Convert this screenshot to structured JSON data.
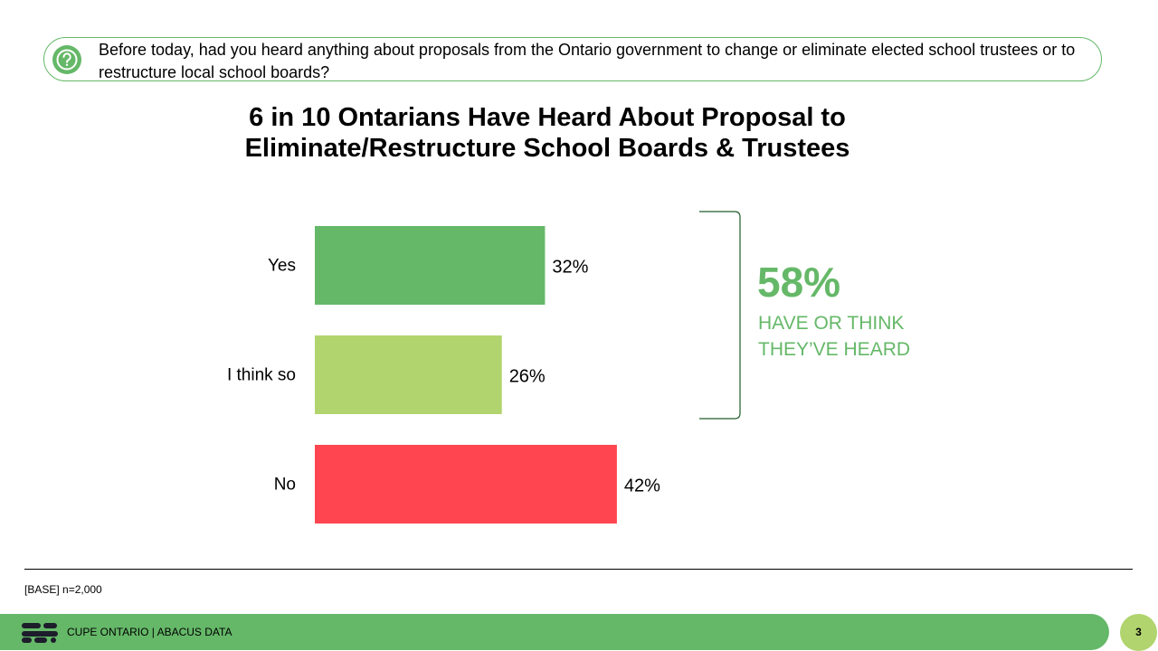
{
  "question": "Before today, had you heard anything about proposals from the Ontario government to change or eliminate elected school trustees or to restructure local school boards?",
  "title_line1": "6 in 10 Ontarians Have Heard About Proposal to",
  "title_line2": "Eliminate/Restructure School Boards & Trustees",
  "chart_data": {
    "type": "bar",
    "orientation": "horizontal",
    "categories": [
      "Yes",
      "I think so",
      "No"
    ],
    "values": [
      32,
      26,
      42
    ],
    "value_labels": [
      "32%",
      "26%",
      "42%"
    ],
    "colors": [
      "#65b868",
      "#b1d46e",
      "#ff4650"
    ],
    "xlim": [
      0,
      60
    ],
    "grid": false,
    "legend": "none"
  },
  "callout": {
    "value": "58%",
    "line1": "HAVE OR THINK",
    "line2": "THEY’VE HEARD",
    "color": "#65b868"
  },
  "base_note": "[BASE] n=2,000",
  "footer": {
    "text": "CUPE ONTARIO  |  ABACUS DATA",
    "page_number": "3",
    "bar_color": "#65b868",
    "page_circle_color": "#b1d46e"
  }
}
